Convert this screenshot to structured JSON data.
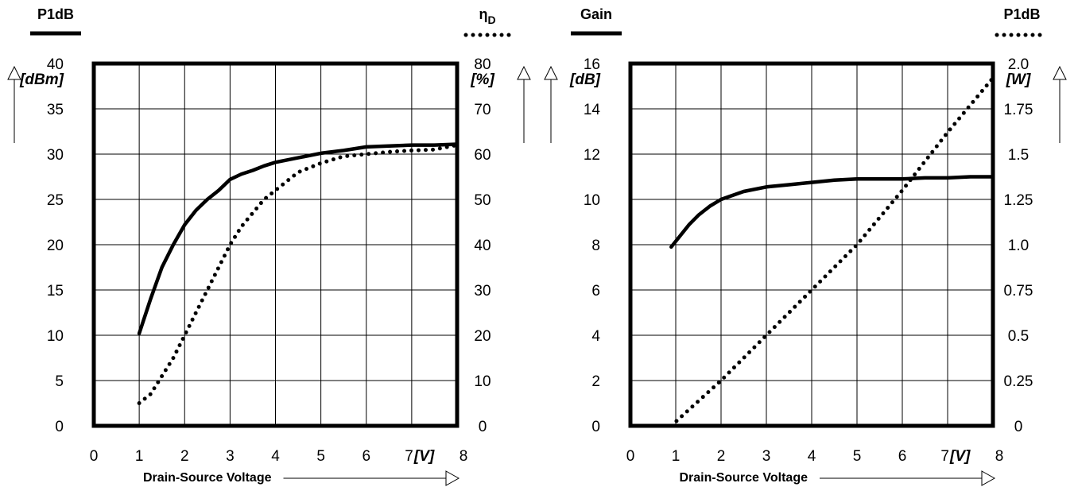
{
  "chart_data": [
    {
      "type": "line",
      "xlabel": "Drain-Source Voltage",
      "x_unit": "[V]",
      "x_ticks": [
        "0",
        "1",
        "2",
        "3",
        "4",
        "5",
        "6",
        "7",
        "8"
      ],
      "xlim": [
        0,
        8
      ],
      "grid": true,
      "left_axis": {
        "label": "P1dB",
        "unit": "[dBm]",
        "ticks": [
          "0",
          "5",
          "10",
          "15",
          "20",
          "25",
          "30",
          "35",
          "40"
        ],
        "ylim": [
          0,
          40
        ]
      },
      "right_axis": {
        "label": "ηD",
        "label_main": "η",
        "label_sub": "D",
        "unit": "[%]",
        "ticks": [
          "0",
          "10",
          "20",
          "30",
          "40",
          "50",
          "60",
          "70",
          "80"
        ],
        "ylim": [
          0,
          80
        ]
      },
      "series": [
        {
          "name": "P1dB",
          "style": "solid",
          "axis": "left",
          "x": [
            1.0,
            1.25,
            1.5,
            1.75,
            2.0,
            2.25,
            2.5,
            2.75,
            3.0,
            3.25,
            3.5,
            3.75,
            4.0,
            4.5,
            5.0,
            5.5,
            6.0,
            6.5,
            7.0,
            7.5,
            8.0
          ],
          "y": [
            10.2,
            14.0,
            17.5,
            20.0,
            22.2,
            23.8,
            25.0,
            26.0,
            27.2,
            27.8,
            28.2,
            28.7,
            29.1,
            29.6,
            30.1,
            30.4,
            30.8,
            30.9,
            31.0,
            31.0,
            31.1
          ]
        },
        {
          "name": "ηD",
          "style": "dotted",
          "axis": "right",
          "x": [
            1.0,
            1.25,
            1.5,
            1.75,
            2.0,
            2.25,
            2.5,
            2.75,
            3.0,
            3.25,
            3.5,
            3.75,
            4.0,
            4.5,
            5.0,
            5.5,
            6.0,
            6.5,
            7.0,
            7.5,
            8.0
          ],
          "y": [
            5,
            7,
            11,
            15,
            20,
            25,
            30,
            35,
            40,
            44,
            47,
            50,
            52,
            56,
            58,
            59.5,
            60,
            60.5,
            60.8,
            61,
            62
          ]
        }
      ]
    },
    {
      "type": "line",
      "xlabel": "Drain-Source Voltage",
      "x_unit": "[V]",
      "x_ticks": [
        "0",
        "1",
        "2",
        "3",
        "4",
        "5",
        "6",
        "7",
        "8"
      ],
      "xlim": [
        0,
        8
      ],
      "grid": true,
      "left_axis": {
        "label": "Gain",
        "unit": "[dB]",
        "ticks": [
          "0",
          "2",
          "4",
          "6",
          "8",
          "10",
          "12",
          "14",
          "16"
        ],
        "ylim": [
          0,
          16
        ]
      },
      "right_axis": {
        "label": "P1dB",
        "unit": "[W]",
        "ticks": [
          "0",
          "0.25",
          "0.5",
          "0.75",
          "1.0",
          "1.25",
          "1.5",
          "1.75",
          "2.0"
        ],
        "ylim": [
          0,
          2
        ]
      },
      "series": [
        {
          "name": "Gain",
          "style": "solid",
          "axis": "left",
          "x": [
            0.9,
            1.1,
            1.3,
            1.5,
            1.75,
            2.0,
            2.5,
            3.0,
            3.5,
            4.0,
            4.5,
            5.0,
            5.5,
            6.0,
            6.5,
            7.0,
            7.5,
            8.0
          ],
          "y": [
            7.9,
            8.4,
            8.9,
            9.3,
            9.7,
            10.0,
            10.35,
            10.55,
            10.65,
            10.75,
            10.85,
            10.9,
            10.9,
            10.9,
            10.95,
            10.95,
            11.0,
            11.0
          ]
        },
        {
          "name": "P1dB",
          "style": "dotted",
          "axis": "right",
          "x": [
            0.9,
            2.0,
            3.0,
            4.0,
            5.0,
            6.0,
            7.0,
            8.0
          ],
          "y": [
            0.0,
            0.25,
            0.5,
            0.75,
            1.0,
            1.3,
            1.62,
            1.92
          ]
        }
      ]
    }
  ]
}
